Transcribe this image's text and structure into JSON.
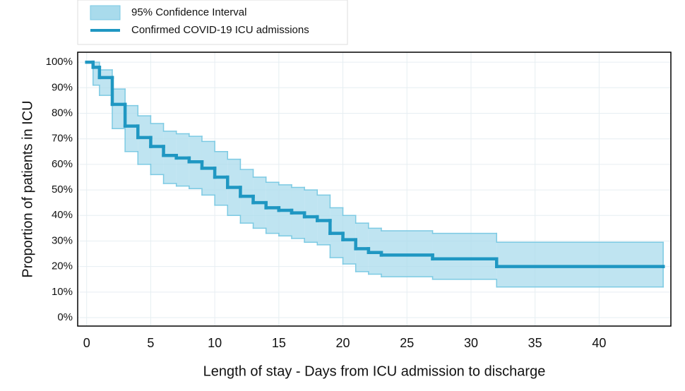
{
  "chart_data": {
    "type": "step",
    "x_label": "Length of stay - Days from ICU admission to discharge",
    "y_label": "Proportion of patients in ICU",
    "x": [
      0,
      0.5,
      1,
      2,
      3,
      4,
      5,
      6,
      7,
      8,
      9,
      10,
      11,
      12,
      13,
      14,
      15,
      16,
      17,
      18,
      19,
      20,
      21,
      22,
      23,
      27,
      32,
      45
    ],
    "series": [
      {
        "name": "Confirmed COVID-19 ICU admissions",
        "color": "#1f97c2",
        "values": [
          100,
          98,
          94,
          83.5,
          75,
          70.5,
          67,
          63.5,
          62.5,
          61,
          58.5,
          55,
          51,
          47.5,
          45,
          43,
          42,
          41,
          39.5,
          38,
          33,
          30.5,
          27,
          25.5,
          24.5,
          23,
          20,
          20
        ]
      }
    ],
    "confidence_band": {
      "name": "95% Confidence Interval",
      "color": "#a9dbec",
      "edge_color": "#7ccae3",
      "upper": [
        100,
        100,
        97,
        89.5,
        83,
        79,
        76,
        73,
        72,
        71,
        69,
        65,
        62,
        58,
        55,
        53,
        52,
        51,
        50,
        48,
        43,
        40,
        37,
        35,
        34,
        33,
        29.5,
        29.5
      ],
      "lower": [
        100,
        91,
        87,
        74,
        65,
        60,
        56,
        52.5,
        51.5,
        50.5,
        48,
        44,
        40,
        37,
        35,
        33,
        32,
        31,
        29.5,
        28.5,
        23.5,
        21,
        18,
        17,
        16,
        15,
        12,
        12
      ]
    },
    "xlim": [
      -0.7,
      45.6
    ],
    "ylim": [
      -3.3,
      103.9
    ],
    "xticks": [
      0,
      5,
      10,
      15,
      20,
      25,
      30,
      35,
      40
    ],
    "yticks": [
      {
        "value": 0,
        "label": "0%"
      },
      {
        "value": 10,
        "label": "10%"
      },
      {
        "value": 20,
        "label": "20%"
      },
      {
        "value": 30,
        "label": "30%"
      },
      {
        "value": 40,
        "label": "40%"
      },
      {
        "value": 50,
        "label": "50%"
      },
      {
        "value": 60,
        "label": "60%"
      },
      {
        "value": 70,
        "label": "70%"
      },
      {
        "value": 80,
        "label": "80%"
      },
      {
        "value": 90,
        "label": "90%"
      },
      {
        "value": 100,
        "label": "100%"
      }
    ],
    "grid": true
  }
}
